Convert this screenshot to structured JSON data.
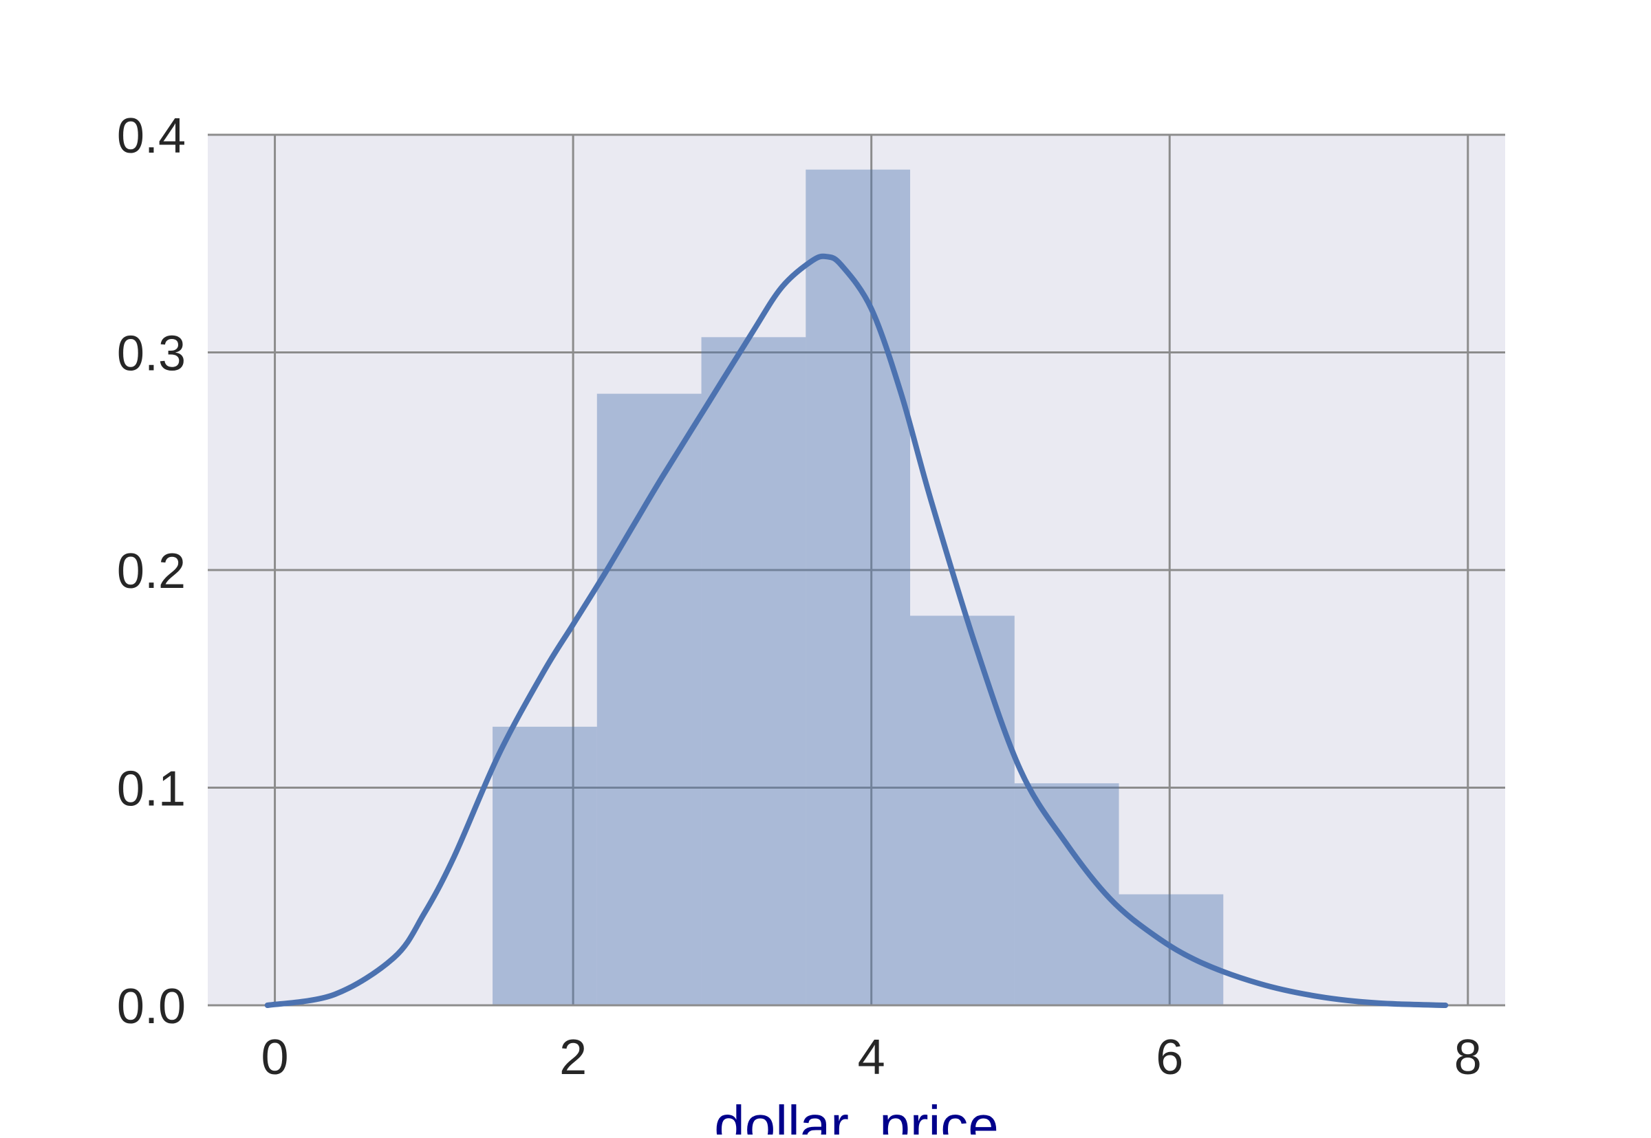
{
  "chart_data": {
    "type": "bar",
    "subtype": "histogram-with-kde",
    "title": "",
    "xlabel": "dollar_price",
    "ylabel": "",
    "xlim": [
      -0.45,
      8.25
    ],
    "ylim": [
      0,
      0.4
    ],
    "xticks": [
      0,
      2,
      4,
      6,
      8
    ],
    "yticks": [
      0.0,
      0.1,
      0.2,
      0.3,
      0.4
    ],
    "xtick_labels": [
      "0",
      "2",
      "4",
      "6",
      "8"
    ],
    "ytick_labels": [
      "0.0",
      "0.1",
      "0.2",
      "0.3",
      "0.4"
    ],
    "grid": true,
    "legend": "none",
    "colors": {
      "background": "#eaeaf2",
      "grid": "#8c8c8c",
      "bar": "#4c72b0",
      "kde": "#4c72b0",
      "xlabel": "#00008b"
    },
    "histogram": {
      "bin_edges": [
        1.46,
        2.16,
        2.86,
        3.56,
        4.26,
        4.96,
        5.66,
        6.36
      ],
      "values": [
        0.128,
        0.281,
        0.307,
        0.384,
        0.179,
        0.102,
        0.051
      ]
    },
    "kde": {
      "x": [
        -0.05,
        0.4,
        0.8,
        1.0,
        1.2,
        1.5,
        1.8,
        2.0,
        2.2,
        2.4,
        2.6,
        2.9,
        3.2,
        3.4,
        3.6,
        3.7,
        3.8,
        4.0,
        4.2,
        4.4,
        4.7,
        5.0,
        5.3,
        5.6,
        5.9,
        6.2,
        6.6,
        7.0,
        7.4,
        7.85
      ],
      "y": [
        0.0,
        0.005,
        0.022,
        0.042,
        0.068,
        0.115,
        0.153,
        0.175,
        0.197,
        0.22,
        0.243,
        0.276,
        0.309,
        0.33,
        0.342,
        0.344,
        0.34,
        0.32,
        0.281,
        0.232,
        0.165,
        0.108,
        0.075,
        0.049,
        0.032,
        0.02,
        0.01,
        0.004,
        0.001,
        0.0
      ]
    }
  }
}
